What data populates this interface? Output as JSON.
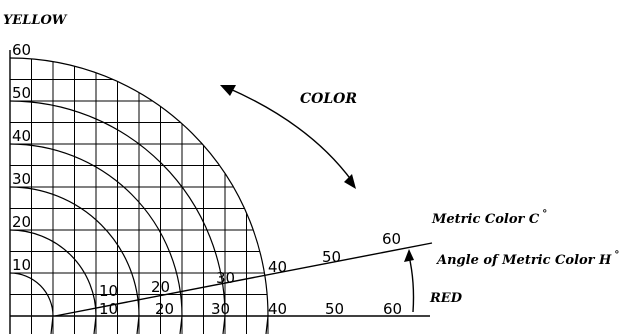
{
  "axis_labels": {
    "y": "YELLOW",
    "x": "RED"
  },
  "arrow_label": "COLOR",
  "legend": {
    "metric_color": "Metric Color  C",
    "angle": "Angle of Metric Color H"
  },
  "degree_symbol": "°",
  "y_ticks": [
    "60",
    "50",
    "40",
    "30",
    "20",
    "10"
  ],
  "x_ticks": [
    "10",
    "20",
    "30",
    "40",
    "50",
    "60"
  ],
  "ray_ticks": [
    "10",
    "20",
    "30",
    "40",
    "50",
    "60"
  ]
}
